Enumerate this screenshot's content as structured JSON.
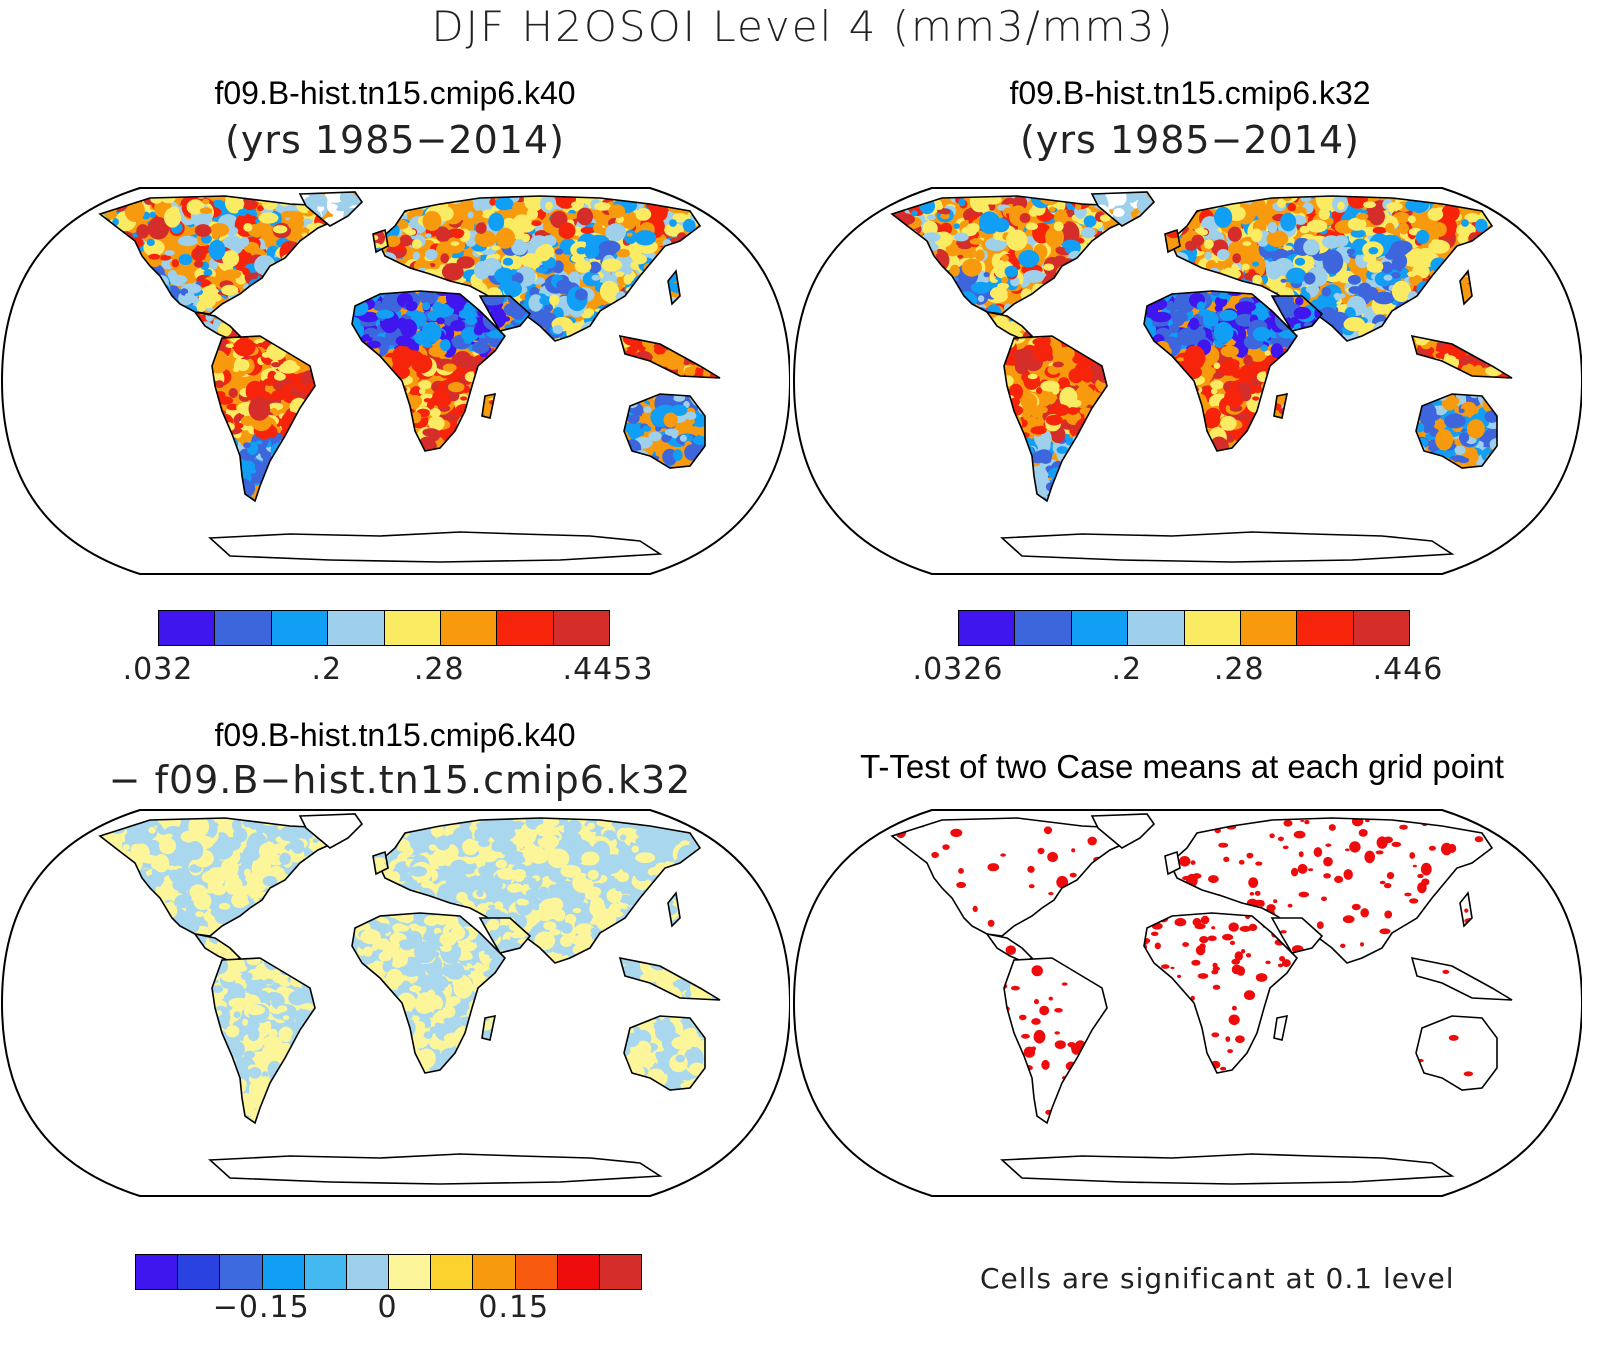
{
  "title": "DJF H2OSOI Level 4 (mm3/mm3)",
  "panels": {
    "top_left": {
      "title": "f09.B-hist.tn15.cmip6.k40",
      "subtitle": "(yrs 1985−2014)",
      "fill": "abs"
    },
    "top_right": {
      "title": "f09.B-hist.tn15.cmip6.k32",
      "subtitle": "(yrs 1985−2014)",
      "fill": "abs"
    },
    "bottom_left": {
      "title": "f09.B-hist.tn15.cmip6.k40",
      "subtitle": "− f09.B−hist.tn15.cmip6.k32",
      "fill": "diff"
    },
    "bottom_right": {
      "title": "T-Test of two Case means at each grid point",
      "fill": "ttest",
      "note": "Cells are significant at 0.1 level"
    }
  },
  "colorbars": {
    "abs_left": {
      "colors": [
        "#3f17ee",
        "#3e66dc",
        "#119ff5",
        "#9ed0ec",
        "#fbeb62",
        "#f89a0e",
        "#f6240b",
        "#d52d2a"
      ],
      "labels": [
        ".032",
        ".2",
        ".28",
        ".4453"
      ]
    },
    "abs_right": {
      "colors": [
        "#3f17ee",
        "#3e66dc",
        "#119ff5",
        "#9ed0ec",
        "#fbeb62",
        "#f89a0e",
        "#f6240b",
        "#d52d2a"
      ],
      "labels": [
        ".0326",
        ".2",
        ".28",
        ".446"
      ]
    },
    "diff": {
      "colors": [
        "#3f17ee",
        "#2a43e0",
        "#3e6ae0",
        "#119ff5",
        "#44b9f0",
        "#9ed0ec",
        "#fdf59a",
        "#fbd22e",
        "#f89a0e",
        "#f85a10",
        "#ef0c0c",
        "#d52d2a"
      ],
      "labels": [
        "−0.15",
        "0",
        "0.15"
      ]
    }
  }
}
